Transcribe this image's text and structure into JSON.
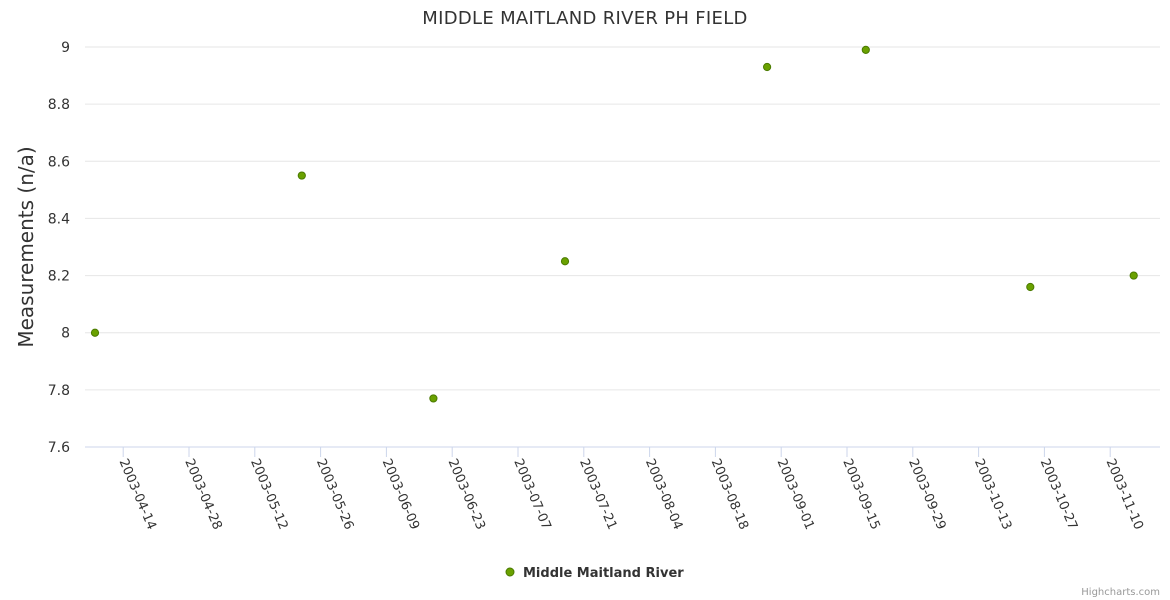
{
  "chart_data": {
    "type": "scatter",
    "title": "MIDDLE MAITLAND RIVER PH FIELD",
    "ylabel": "Measurements (n/a)",
    "xlabel": "",
    "ylim": [
      7.6,
      9.0
    ],
    "yticks": [
      "9",
      "8.8",
      "8.6",
      "8.4",
      "8.2",
      "8",
      "7.8",
      "7.6"
    ],
    "ytick_values": [
      9.0,
      8.8,
      8.6,
      8.4,
      8.2,
      8.0,
      7.8,
      7.6
    ],
    "xlim": [
      "2003-04-08",
      "2003-11-15"
    ],
    "xticks": [
      "2003-04-14",
      "2003-04-28",
      "2003-05-12",
      "2003-05-26",
      "2003-06-09",
      "2003-06-23",
      "2003-07-07",
      "2003-07-21",
      "2003-08-04",
      "2003-08-18",
      "2003-09-01",
      "2003-09-15",
      "2003-09-29",
      "2003-10-13",
      "2003-10-27",
      "2003-11-10"
    ],
    "grid": true,
    "legend": "bottom-center",
    "series": [
      {
        "name": "Middle Maitland River",
        "color": "#6aa100",
        "points": [
          {
            "x": "2003-04-08",
            "y": 8.0
          },
          {
            "x": "2003-05-22",
            "y": 8.55
          },
          {
            "x": "2003-06-19",
            "y": 7.77
          },
          {
            "x": "2003-07-17",
            "y": 8.25
          },
          {
            "x": "2003-08-29",
            "y": 8.93
          },
          {
            "x": "2003-09-19",
            "y": 8.99
          },
          {
            "x": "2003-10-24",
            "y": 8.16
          },
          {
            "x": "2003-11-15",
            "y": 8.2
          }
        ]
      }
    ]
  },
  "credits": "Highcharts.com",
  "colors": {
    "grid": "#e6e6e6",
    "axis": "#ccd6eb",
    "text": "#333333",
    "point_fill": "#6aa100",
    "point_stroke": "#4a7a00"
  }
}
